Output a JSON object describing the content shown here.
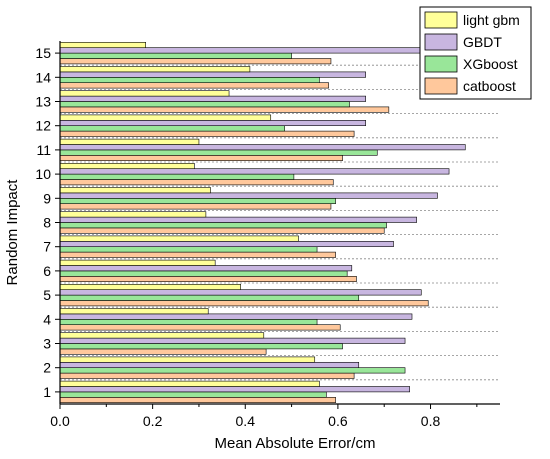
{
  "chart_data": {
    "type": "bar",
    "orientation": "horizontal",
    "title": "",
    "xlabel": "Mean Absolute Error/cm",
    "ylabel": "Random Impact",
    "xlim": [
      0,
      0.95
    ],
    "xticks": [
      "0.0",
      "0.2",
      "0.4",
      "0.6",
      "0.8"
    ],
    "xtick_values": [
      0,
      0.2,
      0.4,
      0.6,
      0.8
    ],
    "categories": [
      "1",
      "2",
      "3",
      "4",
      "5",
      "6",
      "7",
      "8",
      "9",
      "10",
      "11",
      "12",
      "13",
      "14",
      "15"
    ],
    "grid": "dashed horizontal separators between categories",
    "legend_position": "top-right",
    "series": [
      {
        "name": "light gbm",
        "color": "#ffff99",
        "values": [
          0.56,
          0.55,
          0.44,
          0.32,
          0.39,
          0.335,
          0.515,
          0.315,
          0.325,
          0.29,
          0.3,
          0.455,
          0.365,
          0.41,
          0.185
        ]
      },
      {
        "name": "GBDT",
        "color": "#c8b6e0",
        "values": [
          0.755,
          0.645,
          0.745,
          0.76,
          0.78,
          0.63,
          0.72,
          0.77,
          0.815,
          0.84,
          0.875,
          0.66,
          0.66,
          0.66,
          0.78
        ]
      },
      {
        "name": "XGboost",
        "color": "#99e699",
        "values": [
          0.575,
          0.745,
          0.61,
          0.555,
          0.645,
          0.62,
          0.555,
          0.705,
          0.595,
          0.505,
          0.685,
          0.485,
          0.625,
          0.56,
          0.5
        ]
      },
      {
        "name": "catboost",
        "color": "#ffc89c",
        "values": [
          0.595,
          0.635,
          0.445,
          0.605,
          0.795,
          0.64,
          0.595,
          0.7,
          0.585,
          0.59,
          0.61,
          0.635,
          0.71,
          0.58,
          0.585
        ]
      }
    ]
  }
}
